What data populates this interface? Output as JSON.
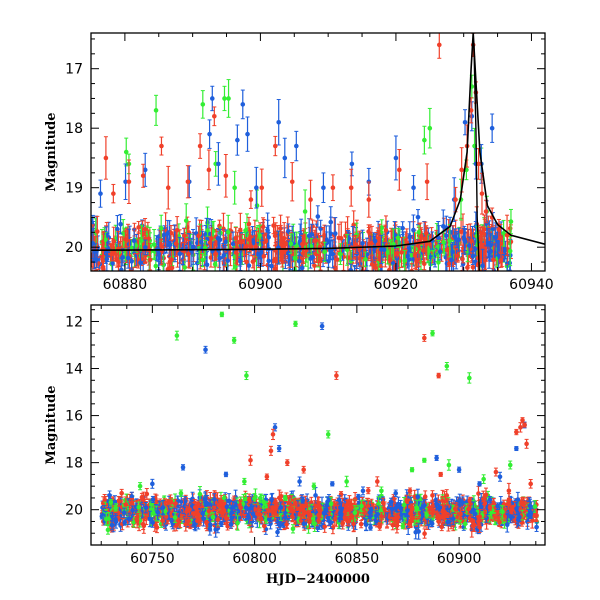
{
  "figure": {
    "ylabel_top": "Magnitude",
    "ylabel_bottom": "Magnitude",
    "xlabel_bottom": "HJD−2400000"
  },
  "colors": {
    "green": "#33ee33",
    "blue": "#1f5fdc",
    "red": "#f0402a",
    "model": "#000000"
  },
  "chart_data": [
    {
      "type": "scatter",
      "panel": "top",
      "xlim": [
        60875,
        60942
      ],
      "ylim": [
        20.4,
        16.4
      ],
      "y_inverted": true,
      "xticks": [
        60880,
        60900,
        60920,
        60940
      ],
      "yticks": [
        17,
        18,
        19,
        20
      ],
      "ylabel": "Magnitude",
      "xlabel": "",
      "dense_baseline": {
        "x_start": 60875,
        "x_end": 60937,
        "mag_center": 20.0,
        "mag_spread": 0.35
      },
      "series": [
        {
          "color": "green",
          "points": [
            [
              60880.2,
              18.4
            ],
            [
              60880.6,
              18.6
            ],
            [
              60884.6,
              17.7
            ],
            [
              60891.5,
              17.6
            ],
            [
              60893.4,
              18.6
            ],
            [
              60894.7,
              17.5
            ],
            [
              60895.3,
              17.5
            ],
            [
              60896.2,
              19.0
            ],
            [
              60899.5,
              19.3
            ],
            [
              60906.6,
              19.4
            ],
            [
              60924.2,
              18.2
            ],
            [
              60925.0,
              18.0
            ],
            [
              60929.6,
              19.2
            ],
            [
              60930.4,
              18.7
            ],
            [
              60931.2,
              17.3
            ],
            [
              60931.6,
              18.3
            ],
            [
              60932.6,
              18.6
            ],
            [
              60933.4,
              19.4
            ]
          ]
        },
        {
          "color": "blue",
          "points": [
            [
              60876.4,
              19.1
            ],
            [
              60880.1,
              18.9
            ],
            [
              60883.0,
              18.7
            ],
            [
              60889.5,
              18.9
            ],
            [
              60892.5,
              18.1
            ],
            [
              60892.9,
              17.5
            ],
            [
              60893.8,
              18.6
            ],
            [
              60896.6,
              18.2
            ],
            [
              60897.4,
              17.6
            ],
            [
              60898.1,
              18.1
            ],
            [
              60899.4,
              19.0
            ],
            [
              60902.7,
              17.9
            ],
            [
              60903.6,
              18.5
            ],
            [
              60905.3,
              18.3
            ],
            [
              60909.3,
              19.0
            ],
            [
              60913.5,
              18.6
            ],
            [
              60916.0,
              18.9
            ],
            [
              60920.0,
              18.5
            ],
            [
              60922.6,
              19.0
            ],
            [
              60928.6,
              19.2
            ],
            [
              60930.2,
              17.9
            ],
            [
              60931.2,
              17.8
            ],
            [
              60931.8,
              18.6
            ],
            [
              60932.6,
              18.6
            ],
            [
              60933.4,
              19.6
            ],
            [
              60934.2,
              18.0
            ]
          ]
        },
        {
          "color": "red",
          "points": [
            [
              60877.2,
              18.5
            ],
            [
              60878.3,
              19.1
            ],
            [
              60880.6,
              18.9
            ],
            [
              60882.7,
              18.8
            ],
            [
              60885.4,
              18.3
            ],
            [
              60886.4,
              19.0
            ],
            [
              60889.3,
              18.9
            ],
            [
              60891.1,
              18.3
            ],
            [
              60892.4,
              18.7
            ],
            [
              60893.2,
              17.8
            ],
            [
              60894.9,
              18.8
            ],
            [
              60898.6,
              19.2
            ],
            [
              60900.2,
              19.0
            ],
            [
              60902.2,
              18.3
            ],
            [
              60904.7,
              18.9
            ],
            [
              60907.4,
              19.2
            ],
            [
              60910.7,
              19.0
            ],
            [
              60913.4,
              19.0
            ],
            [
              60916.0,
              19.2
            ],
            [
              60920.5,
              18.7
            ],
            [
              60924.6,
              18.9
            ],
            [
              60926.4,
              16.6
            ],
            [
              60928.8,
              19.2
            ],
            [
              60929.7,
              18.7
            ],
            [
              60930.5,
              18.3
            ],
            [
              60931.1,
              17.7
            ],
            [
              60931.4,
              16.6
            ],
            [
              60931.8,
              17.4
            ],
            [
              60932.2,
              18.6
            ],
            [
              60932.7,
              19.1
            ],
            [
              60933.3,
              19.4
            ],
            [
              60934.2,
              19.5
            ],
            [
              60935.2,
              19.7
            ],
            [
              60936.4,
              19.8
            ]
          ]
        }
      ],
      "model_curve": {
        "type": "line",
        "color": "model",
        "points": [
          [
            60875,
            20.05
          ],
          [
            60895,
            20.04
          ],
          [
            60910,
            20.02
          ],
          [
            60920,
            19.98
          ],
          [
            60925,
            19.9
          ],
          [
            60928,
            19.65
          ],
          [
            60929.5,
            19.2
          ],
          [
            60930.5,
            18.4
          ],
          [
            60931.1,
            17.0
          ],
          [
            60931.4,
            16.4
          ],
          [
            60931.7,
            17.0
          ],
          [
            60932.4,
            18.4
          ],
          [
            60933.5,
            19.3
          ],
          [
            60935,
            19.62
          ],
          [
            60937,
            19.8
          ],
          [
            60942,
            19.95
          ]
        ],
        "secondary_branch": [
          [
            60931.5,
            16.6
          ],
          [
            60931.8,
            18.0
          ],
          [
            60932.0,
            19.5
          ],
          [
            60932.3,
            20.4
          ]
        ]
      }
    },
    {
      "type": "scatter",
      "panel": "bottom",
      "xlim": [
        60720,
        60942
      ],
      "ylim": [
        21.5,
        11.3
      ],
      "y_inverted": true,
      "xticks": [
        60750,
        60800,
        60850,
        60900
      ],
      "yticks": [
        12,
        14,
        16,
        18,
        20
      ],
      "ylabel": "Magnitude",
      "xlabel": "HJD−2400000",
      "dense_baseline": {
        "x_start": 60725,
        "x_end": 60938,
        "mag_center": 20.1,
        "mag_spread": 0.6
      },
      "series": [
        {
          "color": "green",
          "points": [
            [
              60762,
              12.6
            ],
            [
              60784,
              11.7
            ],
            [
              60790,
              12.8
            ],
            [
              60796,
              14.3
            ],
            [
              60820,
              12.1
            ],
            [
              60836,
              16.8
            ],
            [
              60887,
              12.5
            ],
            [
              60894,
              13.9
            ],
            [
              60905,
              14.4
            ],
            [
              60744,
              19.0
            ],
            [
              60764,
              19.3
            ],
            [
              60795,
              18.8
            ],
            [
              60815,
              19.5
            ],
            [
              60829,
              19.0
            ],
            [
              60845,
              18.8
            ],
            [
              60862,
              19.2
            ],
            [
              60877,
              18.3
            ],
            [
              60883,
              17.9
            ],
            [
              60895,
              18.1
            ],
            [
              60912,
              18.7
            ],
            [
              60925,
              18.1
            ]
          ]
        },
        {
          "color": "blue",
          "points": [
            [
              60776,
              13.2
            ],
            [
              60833,
              12.2
            ],
            [
              60765,
              18.2
            ],
            [
              60810,
              16.5
            ],
            [
              60812,
              17.4
            ],
            [
              60786,
              18.5
            ],
            [
              60822,
              18.8
            ],
            [
              60838,
              18.9
            ],
            [
              60853,
              19.2
            ],
            [
              60869,
              19.3
            ],
            [
              60889,
              17.8
            ],
            [
              60900,
              18.3
            ],
            [
              60910,
              18.9
            ],
            [
              60920,
              18.6
            ],
            [
              60928,
              17.4
            ],
            [
              60932,
              16.4
            ],
            [
              60750,
              18.9
            ]
          ]
        },
        {
          "color": "red",
          "points": [
            [
              60840,
              14.3
            ],
            [
              60883,
              12.7
            ],
            [
              60890,
              14.3
            ],
            [
              60798,
              17.9
            ],
            [
              60808,
              17.5
            ],
            [
              60809,
              16.8
            ],
            [
              60806,
              18.6
            ],
            [
              60816,
              18.0
            ],
            [
              60824,
              18.3
            ],
            [
              60860,
              18.8
            ],
            [
              60876,
              19.2
            ],
            [
              60891,
              18.5
            ],
            [
              60918,
              18.4
            ],
            [
              60928,
              16.7
            ],
            [
              60930,
              16.5
            ],
            [
              60931,
              16.2
            ],
            [
              60932,
              16.4
            ],
            [
              60933,
              17.2
            ],
            [
              60935,
              18.9
            ],
            [
              60735,
              19.3
            ]
          ]
        }
      ]
    }
  ]
}
